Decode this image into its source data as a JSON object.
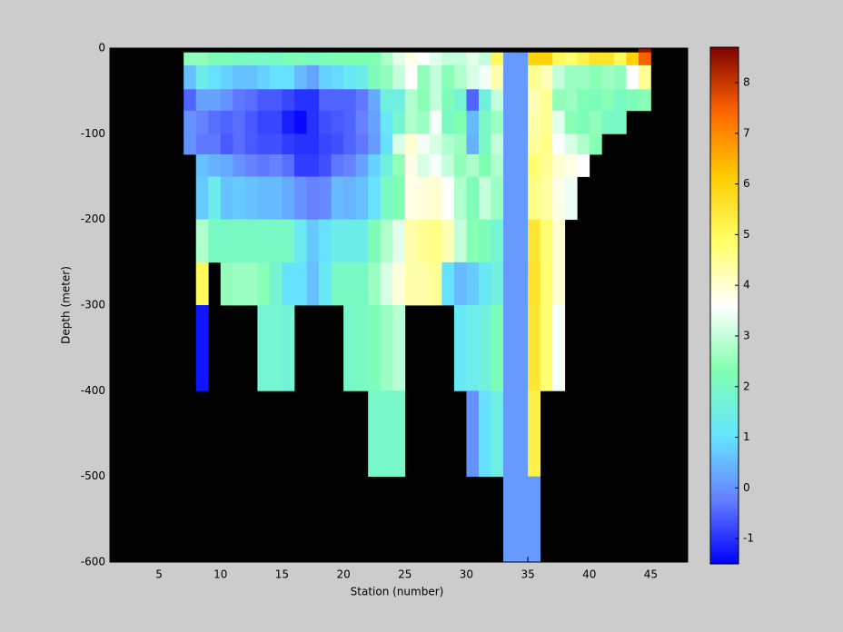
{
  "chart_data": {
    "type": "heatmap",
    "xlabel": "Station (number)",
    "ylabel": "Depth (meter)",
    "xlim": [
      1,
      48
    ],
    "ylim": [
      -600,
      0
    ],
    "xticks": [
      5,
      10,
      15,
      20,
      25,
      30,
      35,
      40,
      45
    ],
    "yticks": [
      0,
      -100,
      -200,
      -300,
      -400,
      -500,
      -600
    ],
    "clim": [
      -1.5,
      8.7
    ],
    "cticks": [
      -1,
      0,
      1,
      2,
      3,
      4,
      5,
      6,
      7,
      8
    ],
    "colormap": [
      "#0000ff",
      "#6680ff",
      "#66e6ff",
      "#80ffb0",
      "#ffffff",
      "#ffff66",
      "#ffcc00",
      "#ff6600",
      "#800000"
    ],
    "background": "#000000",
    "x_bins": [
      7,
      8,
      9,
      10,
      11,
      12,
      13,
      14,
      15,
      16,
      17,
      18,
      19,
      20,
      21,
      22,
      23,
      24,
      25,
      26,
      27,
      28,
      29,
      30,
      31,
      32,
      33,
      34,
      35,
      36,
      37,
      38,
      39,
      40,
      41,
      42,
      43,
      44,
      45
    ],
    "y_bins": [
      0,
      -5,
      -20,
      -48,
      -73,
      -100,
      -124,
      -150,
      -200,
      -250,
      -300,
      -400,
      -500,
      -600
    ],
    "z": [
      [
        null,
        null,
        null,
        null,
        null,
        null,
        null,
        null,
        null,
        null,
        null,
        null,
        null,
        null,
        null,
        null,
        null,
        null,
        null,
        null,
        null,
        null,
        null,
        null,
        null,
        null,
        null,
        null,
        null,
        null,
        null,
        null,
        null,
        null,
        null,
        null,
        null,
        8.5
      ],
      [
        2.5,
        2.5,
        2.2,
        2.2,
        2.0,
        2.0,
        2.0,
        2.0,
        2.2,
        2.2,
        2.0,
        2.2,
        2.3,
        2.3,
        2.3,
        2.3,
        2.8,
        3.3,
        3.8,
        3.6,
        3.3,
        3.0,
        3.0,
        3.3,
        3.0,
        5.0,
        0.1,
        0.1,
        6.0,
        6.0,
        5.0,
        4.8,
        5.2,
        5.6,
        5.6,
        5.0,
        6.0,
        7.5
      ],
      [
        0.6,
        1.4,
        1.0,
        0.8,
        0.6,
        0.6,
        0.8,
        1.0,
        1.0,
        0.5,
        0.2,
        0.8,
        0.9,
        1.2,
        1.4,
        2.2,
        2.5,
        3.0,
        3.6,
        2.5,
        3.0,
        2.4,
        2.8,
        3.2,
        3.5,
        4.3,
        0.1,
        0.1,
        4.5,
        4.2,
        3.0,
        2.6,
        2.6,
        2.4,
        2.6,
        2.5,
        3.6,
        4.5
      ],
      [
        -0.5,
        0.2,
        0.2,
        0.0,
        -0.3,
        -0.4,
        -0.6,
        -0.6,
        -0.8,
        -1.0,
        -1.0,
        -0.5,
        -0.5,
        -0.5,
        -0.3,
        0.3,
        1.6,
        1.5,
        2.8,
        2.4,
        3.0,
        2.2,
        1.8,
        -0.5,
        1.6,
        3.0,
        0.1,
        0.1,
        4.2,
        4.5,
        2.5,
        2.6,
        2.3,
        2.2,
        2.4,
        2.0,
        2.2,
        2.4
      ],
      [
        0.0,
        -0.2,
        -0.4,
        -0.5,
        -0.4,
        -0.6,
        -0.8,
        -0.8,
        -1.2,
        -1.4,
        -1.0,
        -0.7,
        -0.6,
        -0.5,
        -0.2,
        0.2,
        1.2,
        1.8,
        2.8,
        2.6,
        3.5,
        2.0,
        2.3,
        0.5,
        2.0,
        2.6,
        0.1,
        0.1,
        4.3,
        4.5,
        3.3,
        2.4,
        2.2,
        2.5,
        2.0,
        2.0,
        null,
        null
      ],
      [
        0.0,
        -0.3,
        -0.3,
        -0.6,
        -0.4,
        -0.6,
        -0.7,
        -0.7,
        -0.9,
        -1.0,
        -1.0,
        -0.8,
        -0.7,
        -0.5,
        -0.3,
        0.1,
        1.0,
        3.2,
        4.0,
        3.5,
        3.2,
        2.8,
        2.6,
        0.4,
        2.0,
        3.0,
        0.1,
        0.1,
        4.4,
        4.6,
        3.6,
        3.2,
        2.8,
        2.4,
        null,
        null,
        null,
        null
      ],
      [
        null,
        0.6,
        0.4,
        0.3,
        0.0,
        -0.2,
        -0.3,
        -0.2,
        -0.4,
        -0.9,
        -0.9,
        -0.7,
        -0.3,
        -0.2,
        0.2,
        0.8,
        1.6,
        2.5,
        3.8,
        3.2,
        3.5,
        3.0,
        2.5,
        2.8,
        2.3,
        2.8,
        0.1,
        0.1,
        4.8,
        4.5,
        4.0,
        3.8,
        3.6,
        null,
        null,
        null,
        null,
        null
      ],
      [
        null,
        0.7,
        1.4,
        0.6,
        0.7,
        0.6,
        0.5,
        0.5,
        0.3,
        0.0,
        -0.2,
        -0.1,
        0.5,
        0.4,
        0.6,
        1.0,
        2.0,
        2.3,
        3.8,
        3.9,
        4.0,
        3.6,
        2.8,
        2.2,
        3.0,
        2.6,
        0.1,
        0.1,
        4.6,
        4.4,
        3.8,
        3.4,
        null,
        null,
        null,
        null,
        null,
        null
      ],
      [
        null,
        2.8,
        2.0,
        2.0,
        2.0,
        2.0,
        2.0,
        2.0,
        2.0,
        1.3,
        0.7,
        1.0,
        1.4,
        1.4,
        1.4,
        2.2,
        2.8,
        3.3,
        4.3,
        4.5,
        4.6,
        4.2,
        3.0,
        2.4,
        2.2,
        1.8,
        0.1,
        0.1,
        5.5,
        4.8,
        4.0,
        null,
        null,
        null,
        null,
        null,
        null,
        null
      ],
      [
        null,
        5.0,
        null,
        2.5,
        2.6,
        2.6,
        2.4,
        1.8,
        1.0,
        1.0,
        0.6,
        1.2,
        2.0,
        2.0,
        2.0,
        2.6,
        3.2,
        3.9,
        4.3,
        4.3,
        4.5,
        1.0,
        0.5,
        0.7,
        1.2,
        1.6,
        0.1,
        0.1,
        5.6,
        4.8,
        4.0,
        null,
        null,
        null,
        null,
        null,
        null,
        null
      ],
      [
        null,
        -1.3,
        null,
        null,
        null,
        null,
        1.8,
        1.8,
        1.7,
        null,
        null,
        null,
        null,
        1.9,
        2.0,
        2.2,
        2.6,
        2.9,
        null,
        null,
        null,
        null,
        1.2,
        1.4,
        1.6,
        2.2,
        0.1,
        0.1,
        5.5,
        4.8,
        3.5,
        null,
        null,
        null,
        null,
        null,
        null,
        null
      ],
      [
        null,
        null,
        null,
        null,
        null,
        null,
        null,
        null,
        null,
        null,
        null,
        null,
        null,
        null,
        null,
        1.9,
        1.9,
        1.9,
        null,
        null,
        null,
        null,
        null,
        0.0,
        1.0,
        1.5,
        0.1,
        0.1,
        5.2,
        null,
        null,
        null,
        null,
        null,
        null,
        null,
        null,
        null
      ],
      [
        null,
        null,
        null,
        null,
        null,
        null,
        null,
        null,
        null,
        null,
        null,
        null,
        null,
        null,
        null,
        null,
        null,
        null,
        null,
        null,
        null,
        null,
        null,
        null,
        null,
        null,
        0.1,
        0.1,
        0.1,
        null,
        null,
        null,
        null,
        null,
        null,
        null,
        null,
        null
      ]
    ]
  }
}
